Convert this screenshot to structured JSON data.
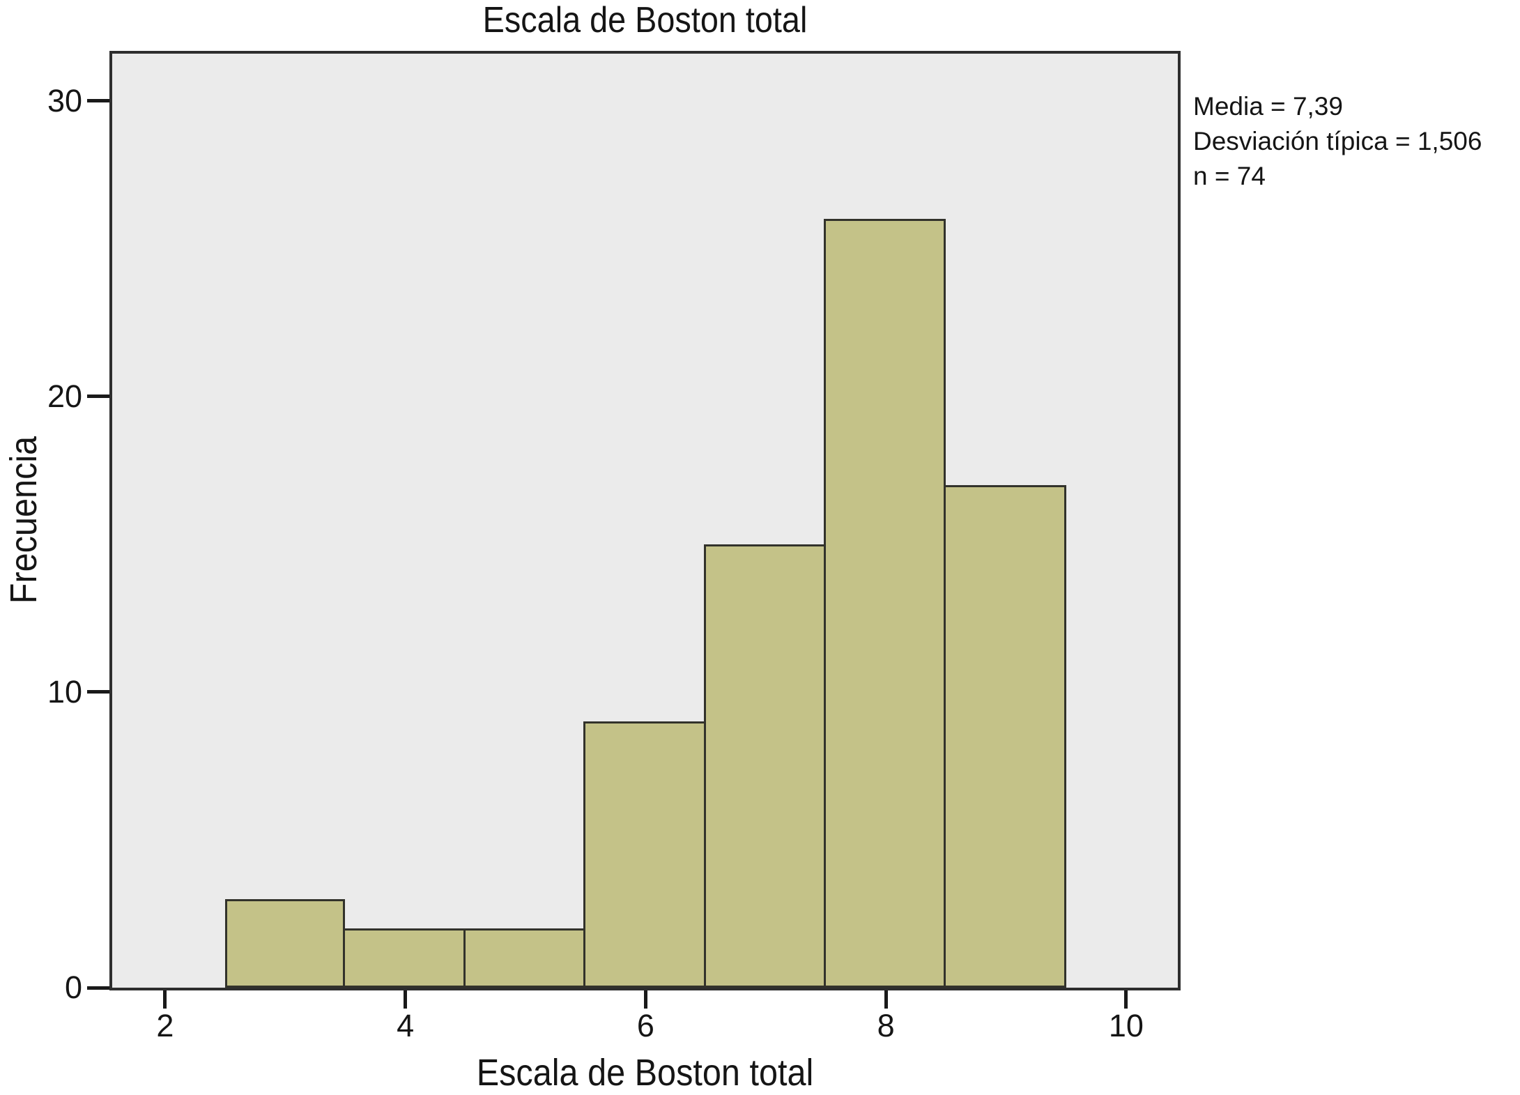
{
  "chart_data": {
    "type": "bar",
    "subtype": "histogram",
    "title": "Escala de Boston total",
    "xlabel": "Escala de Boston total",
    "ylabel": "Frecuencia",
    "bin_edges": [
      2.5,
      3.5,
      4.5,
      5.5,
      6.5,
      7.5,
      8.5,
      9.5
    ],
    "values": [
      3,
      2,
      2,
      9,
      15,
      26,
      17
    ],
    "x_ticks": [
      2,
      4,
      6,
      8,
      10
    ],
    "y_ticks": [
      0,
      10,
      20,
      30
    ],
    "xlim": [
      1.56,
      10.43
    ],
    "ylim": [
      0,
      31.6
    ],
    "grid": false,
    "legend_position": "none",
    "annotation": {
      "media_label": "Media = 7,39",
      "desviacion_label": "Desviación típica = 1,506",
      "n_label": "n = 74"
    },
    "colors": {
      "bar_fill": "#c4c288",
      "bar_border": "#32322b",
      "plot_bg": "#ebebeb",
      "plot_border": "#2e2e2e",
      "page_bg": "#ffffff",
      "text": "#151515"
    }
  }
}
